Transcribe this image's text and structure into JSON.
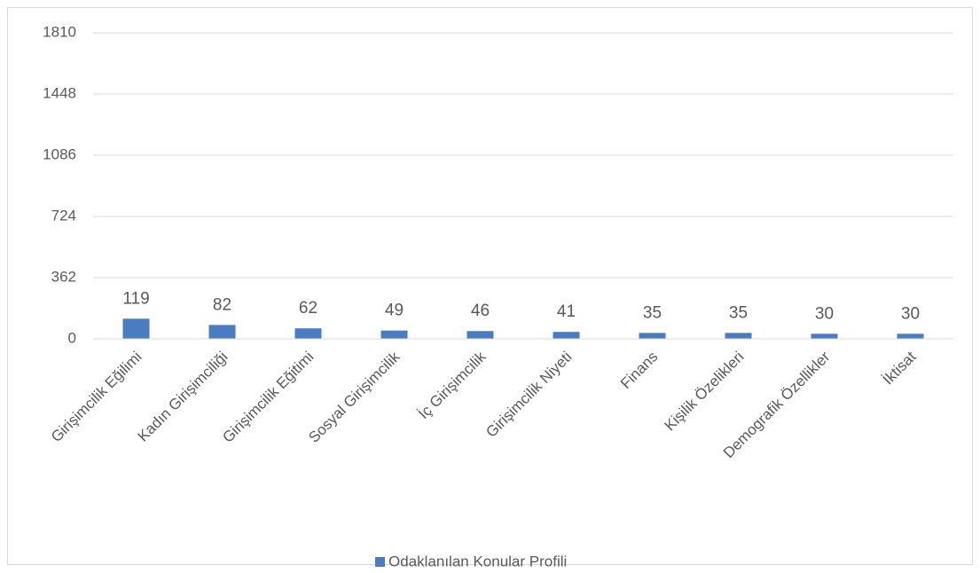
{
  "chart_data": {
    "type": "bar",
    "categories": [
      "Girişimcilik Eğilimi",
      "Kadın Girişimciliği",
      "Girişimcilik Eğitimi",
      "Sosyal Girişimcilik",
      "İç Girişimcilik",
      "Girişimcilik Niyeti",
      "Finans",
      "Kişilik Özelikleri",
      "Demografik Özellikler",
      "İktisat"
    ],
    "series": [
      {
        "name": "Odaklanılan Konular Profili",
        "color": "#4a7cc1",
        "values": [
          119,
          82,
          62,
          49,
          46,
          41,
          35,
          35,
          30,
          30
        ]
      }
    ],
    "ylim": [
      0,
      1810
    ],
    "yticks": [
      0,
      362,
      724,
      1086,
      1448,
      1810
    ],
    "grid": true,
    "legend": "bottom"
  }
}
